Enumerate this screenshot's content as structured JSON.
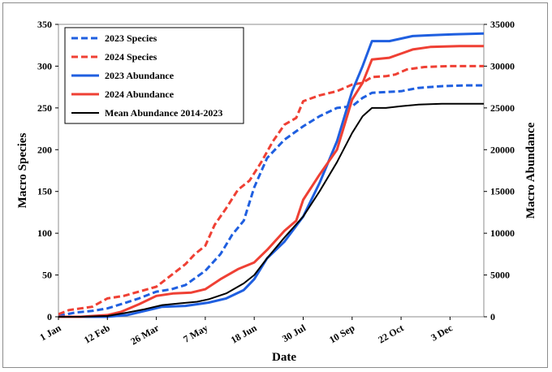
{
  "chart_data": {
    "type": "line",
    "xlabel": "Date",
    "ylabel_left": "Macro Species",
    "ylabel_right": "Macro Abundance",
    "x_tick_labels": [
      "1 Jan",
      "12 Feb",
      "26 Mar",
      "7 May",
      "18 Jun",
      "30 Jul",
      "10 Sep",
      "22 Oct",
      "3 Dec"
    ],
    "x_tick_days": [
      1,
      43,
      85,
      127,
      169,
      211,
      253,
      295,
      337
    ],
    "xlim": [
      1,
      366
    ],
    "ylim_left": [
      0,
      350
    ],
    "ylim_right": [
      0,
      35000
    ],
    "y_ticks_left": [
      0,
      50,
      100,
      150,
      200,
      250,
      300,
      350
    ],
    "y_ticks_right": [
      0,
      5000,
      10000,
      15000,
      20000,
      25000,
      30000,
      35000
    ],
    "series": [
      {
        "name": "2023 Species",
        "axis": "left",
        "style": "dashed",
        "color": "#1f5fe0",
        "x": [
          1,
          15,
          30,
          43,
          57,
          70,
          85,
          98,
          110,
          127,
          140,
          150,
          160,
          169,
          180,
          195,
          211,
          225,
          240,
          253,
          262,
          270,
          282,
          295,
          310,
          330,
          350,
          366
        ],
        "y": [
          1,
          5,
          7,
          10,
          16,
          22,
          30,
          33,
          38,
          55,
          75,
          98,
          115,
          155,
          190,
          212,
          228,
          240,
          250,
          252,
          262,
          268,
          269,
          270,
          274,
          276,
          277,
          277
        ]
      },
      {
        "name": "2024 Species",
        "axis": "left",
        "style": "dashed",
        "color": "#ef4034",
        "x": [
          1,
          10,
          20,
          30,
          43,
          57,
          70,
          85,
          98,
          110,
          118,
          127,
          135,
          145,
          155,
          165,
          175,
          185,
          195,
          205,
          211,
          225,
          240,
          253,
          262,
          270,
          282,
          290,
          300,
          315,
          335,
          366
        ],
        "y": [
          3,
          8,
          10,
          12,
          22,
          25,
          30,
          36,
          50,
          63,
          75,
          85,
          110,
          130,
          152,
          163,
          185,
          210,
          230,
          238,
          258,
          265,
          270,
          278,
          280,
          287,
          288,
          290,
          296,
          299,
          300,
          300
        ]
      },
      {
        "name": "2023 Abundance",
        "axis": "right",
        "style": "solid",
        "color": "#1f5fe0",
        "x": [
          1,
          20,
          43,
          60,
          75,
          90,
          110,
          130,
          145,
          160,
          169,
          180,
          195,
          211,
          225,
          240,
          253,
          262,
          270,
          285,
          295,
          305,
          320,
          340,
          366
        ],
        "y": [
          0,
          0,
          0,
          200,
          700,
          1200,
          1300,
          1700,
          2200,
          3200,
          4500,
          7000,
          9000,
          12000,
          16000,
          21000,
          27000,
          30000,
          33000,
          33000,
          33300,
          33600,
          33700,
          33800,
          33900
        ]
      },
      {
        "name": "2024 Abundance",
        "axis": "right",
        "style": "solid",
        "color": "#ef4034",
        "x": [
          1,
          20,
          43,
          55,
          70,
          85,
          100,
          115,
          127,
          140,
          155,
          169,
          180,
          195,
          205,
          211,
          225,
          240,
          253,
          262,
          270,
          285,
          295,
          305,
          320,
          345,
          366
        ],
        "y": [
          0,
          0,
          200,
          600,
          1500,
          2500,
          2800,
          2900,
          3300,
          4500,
          5700,
          6500,
          8000,
          10300,
          11500,
          14000,
          17000,
          20000,
          26000,
          28000,
          30800,
          31000,
          31500,
          32000,
          32300,
          32400,
          32400
        ]
      },
      {
        "name": "Mean Abundance 2014-2023",
        "axis": "right",
        "style": "solid",
        "color": "#000000",
        "x": [
          1,
          20,
          43,
          60,
          75,
          90,
          105,
          120,
          130,
          145,
          160,
          169,
          180,
          195,
          211,
          225,
          240,
          253,
          262,
          270,
          282,
          295,
          310,
          330,
          350,
          366
        ],
        "y": [
          0,
          0,
          100,
          500,
          900,
          1400,
          1600,
          1800,
          2100,
          2800,
          4000,
          5000,
          7000,
          9500,
          12000,
          15000,
          18500,
          22000,
          24000,
          25000,
          25000,
          25200,
          25400,
          25500,
          25500,
          25500
        ]
      }
    ]
  }
}
